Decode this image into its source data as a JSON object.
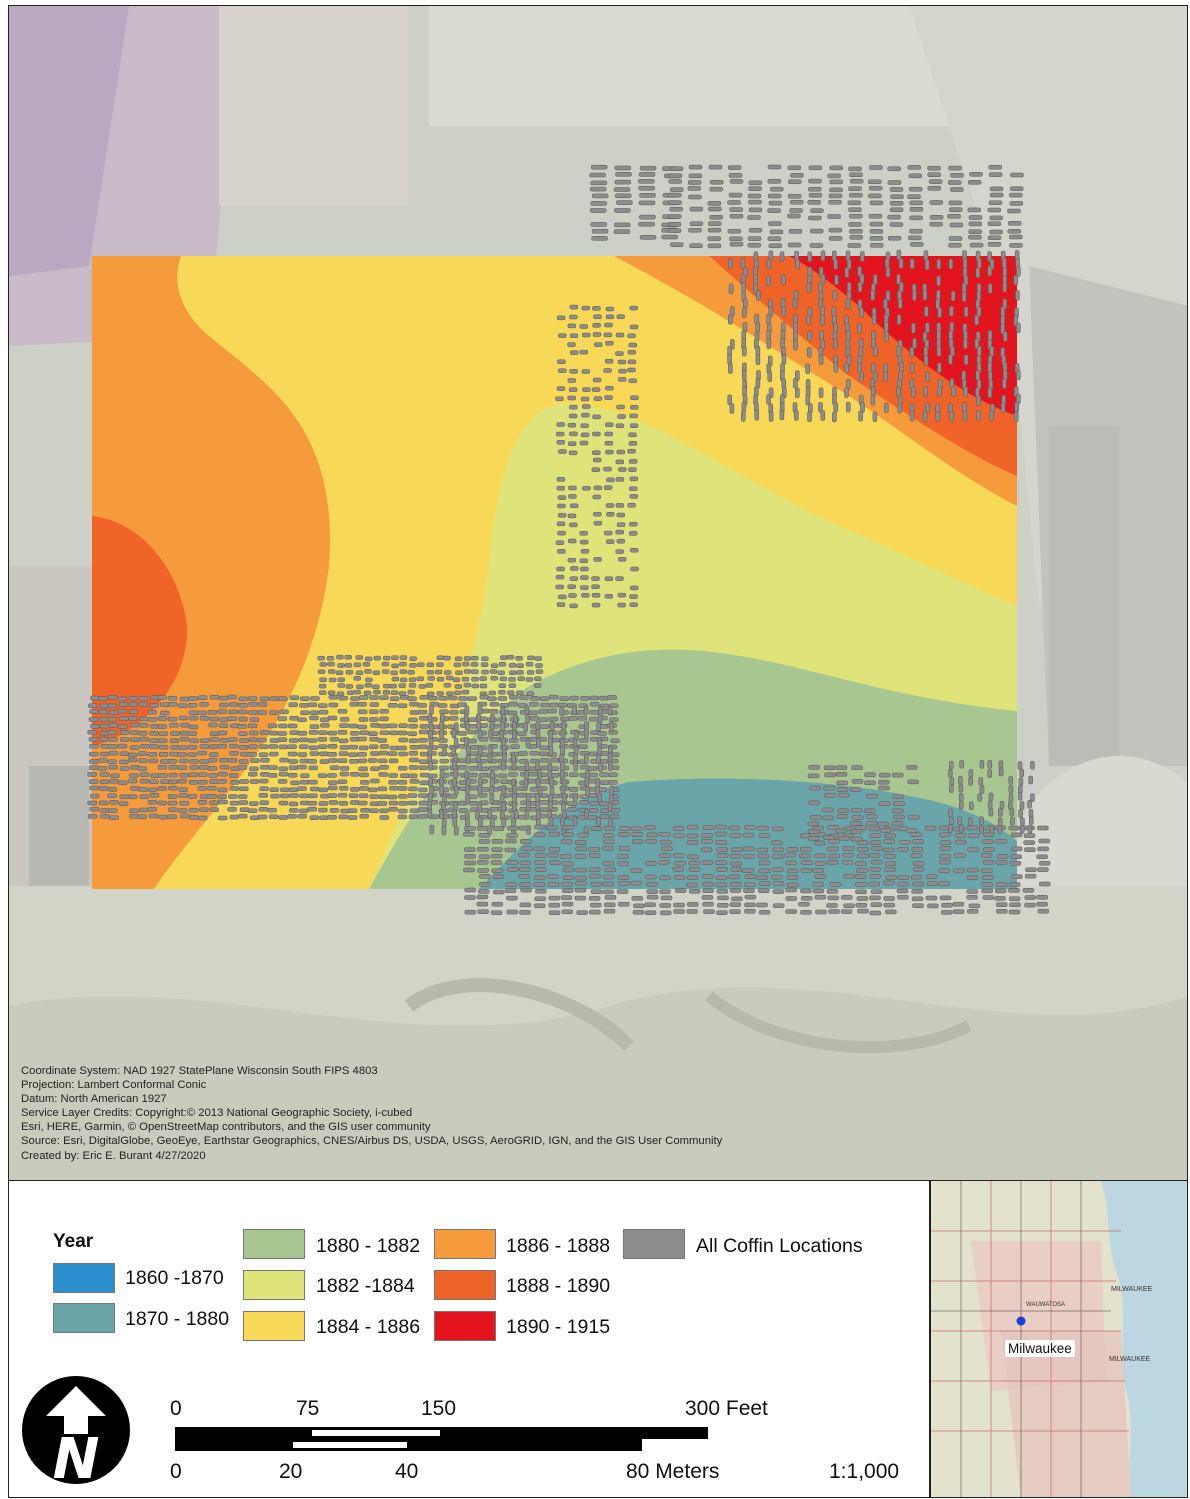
{
  "credits": [
    "Coordinate System: NAD 1927 StatePlane Wisconsin South FIPS 4803",
    "Projection: Lambert Conformal Conic",
    "Datum: North American 1927",
    "Service Layer Credits: Copyright:© 2013 National Geographic Society, i-cubed",
    "Esri, HERE, Garmin, © OpenStreetMap contributors, and the GIS user community",
    " Source: Esri, DigitalGlobe, GeoEye, Earthstar Geographics, CNES/Airbus DS, USDA, USGS, AeroGRID, IGN, and the GIS User Community",
    "Created by: Eric E. Burant 4/27/2020"
  ],
  "legend": {
    "title": "Year",
    "classes": [
      {
        "label": "1860 -1870",
        "color": "#2a8fcc"
      },
      {
        "label": "1870 - 1880",
        "color": "#6aa5aa"
      },
      {
        "label": "1880 - 1882",
        "color": "#a8c68f"
      },
      {
        "label": "1882 -1884",
        "color": "#dfe47a"
      },
      {
        "label": "1884 - 1886",
        "color": "#f8d957"
      },
      {
        "label": "1886 - 1888",
        "color": "#f69b3c"
      },
      {
        "label": "1888 - 1890",
        "color": "#f0642a"
      },
      {
        "label": "1890 - 1915",
        "color": "#e3141d"
      }
    ],
    "points_label": "All Coffin Locations",
    "points_color": "#8c8c8c"
  },
  "scale_bar": {
    "feet_ticks": [
      "0",
      "75",
      "150",
      "300 Feet"
    ],
    "meter_ticks": [
      "0",
      "20",
      "40",
      "80 Meters"
    ],
    "ratio": "1:1,000"
  },
  "north_arrow": {
    "letter": "N"
  },
  "inset": {
    "place_label": "Milwaukee",
    "map_text": [
      "MILWAUKEE",
      "MILWAUKEE",
      "WAUWATOSA"
    ],
    "marker_color": "#1a3fd6"
  }
}
